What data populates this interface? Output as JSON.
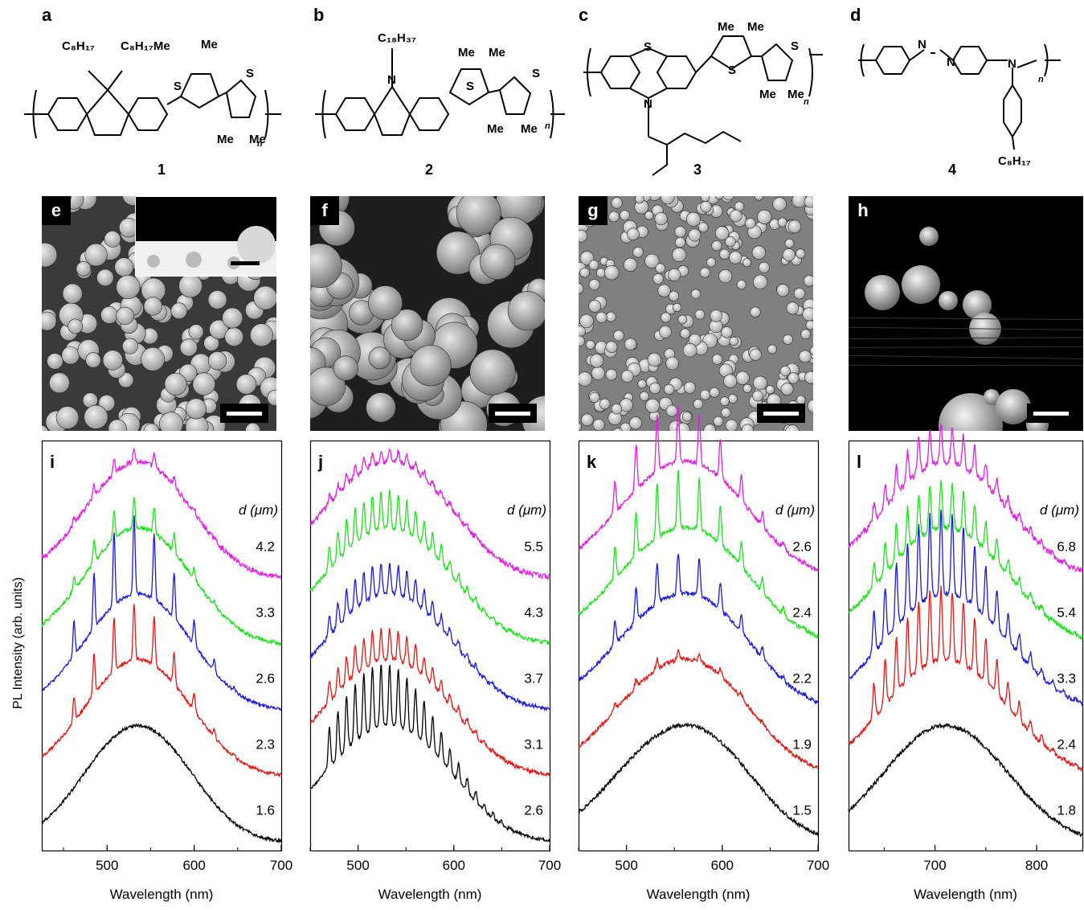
{
  "structures": [
    {
      "panel": "a",
      "compound": "1"
    },
    {
      "panel": "b",
      "compound": "2"
    },
    {
      "panel": "c",
      "compound": "3"
    },
    {
      "panel": "d",
      "compound": "4"
    }
  ],
  "sem_images": [
    {
      "panel": "e"
    },
    {
      "panel": "f"
    },
    {
      "panel": "g"
    },
    {
      "panel": "h"
    }
  ],
  "y_axis_label": "PL Intensity (arb. units)",
  "colors": {
    "magenta": "#e020e0",
    "green": "#20e020",
    "blue": "#1a1ad8",
    "red": "#e01818",
    "black": "#000000"
  },
  "chart_data": [
    {
      "panel": "i",
      "type": "line",
      "xlabel": "Wavelength (nm)",
      "xlim": [
        425,
        700
      ],
      "xticks": [
        500,
        600,
        700
      ],
      "legend_title": "d (μm)",
      "peak_center": 525,
      "peak_width": 55,
      "mode_spacing": 23,
      "mode_start": 462,
      "series": [
        {
          "name": "4.2",
          "color": "#e020e0",
          "modes": 0.15,
          "noise": 0.05
        },
        {
          "name": "3.3",
          "color": "#20e020",
          "modes": 0.3,
          "noise": 0.04
        },
        {
          "name": "2.6",
          "color": "#1a1ad8",
          "modes": 0.75,
          "noise": 0.03
        },
        {
          "name": "2.3",
          "color": "#e01818",
          "modes": 0.55,
          "noise": 0.03
        },
        {
          "name": "1.6",
          "color": "#000000",
          "modes": 0.0,
          "noise": 0.03
        }
      ]
    },
    {
      "panel": "j",
      "type": "line",
      "xlabel": "Wavelength (nm)",
      "xlim": [
        450,
        700
      ],
      "xticks": [
        500,
        600,
        700
      ],
      "legend_title": "d (μm)",
      "peak_center": 520,
      "peak_width": 60,
      "mode_spacing": 9,
      "mode_start": 470,
      "series": [
        {
          "name": "5.5",
          "color": "#e020e0",
          "modes": 0.12,
          "noise": 0.05
        },
        {
          "name": "4.3",
          "color": "#20e020",
          "modes": 0.35,
          "noise": 0.04
        },
        {
          "name": "3.7",
          "color": "#1a1ad8",
          "modes": 0.3,
          "noise": 0.04
        },
        {
          "name": "3.1",
          "color": "#e01818",
          "modes": 0.3,
          "noise": 0.04
        },
        {
          "name": "2.6",
          "color": "#000000",
          "modes": 0.6,
          "noise": 0.03
        }
      ]
    },
    {
      "panel": "k",
      "type": "line",
      "xlabel": "Wavelength (nm)",
      "xlim": [
        450,
        700
      ],
      "xticks": [
        500,
        600,
        700
      ],
      "legend_title": "d (μm)",
      "peak_center": 548,
      "peak_width": 62,
      "mode_spacing": 22,
      "mode_start": 488,
      "series": [
        {
          "name": "2.6",
          "color": "#e020e0",
          "modes": 0.55,
          "noise": 0.04
        },
        {
          "name": "2.4",
          "color": "#20e020",
          "modes": 0.55,
          "noise": 0.04
        },
        {
          "name": "2.2",
          "color": "#1a1ad8",
          "modes": 0.4,
          "noise": 0.04
        },
        {
          "name": "1.9",
          "color": "#e01818",
          "modes": 0.1,
          "noise": 0.04
        },
        {
          "name": "1.5",
          "color": "#000000",
          "modes": 0.0,
          "noise": 0.04
        }
      ]
    },
    {
      "panel": "l",
      "type": "line",
      "xlabel": "Wavelength (nm)",
      "xlim": [
        615,
        845
      ],
      "xticks": [
        700,
        800
      ],
      "legend_title": "d (μm)",
      "peak_center": 700,
      "peak_width": 55,
      "mode_spacing": 11,
      "mode_start": 640,
      "series": [
        {
          "name": "6.8",
          "color": "#e020e0",
          "modes": 0.35,
          "noise": 0.06
        },
        {
          "name": "5.4",
          "color": "#20e020",
          "modes": 0.45,
          "noise": 0.05
        },
        {
          "name": "3.3",
          "color": "#1a1ad8",
          "modes": 0.8,
          "noise": 0.04
        },
        {
          "name": "2.4",
          "color": "#e01818",
          "modes": 0.7,
          "noise": 0.04
        },
        {
          "name": "1.8",
          "color": "#000000",
          "modes": 0.0,
          "noise": 0.04
        }
      ]
    }
  ]
}
